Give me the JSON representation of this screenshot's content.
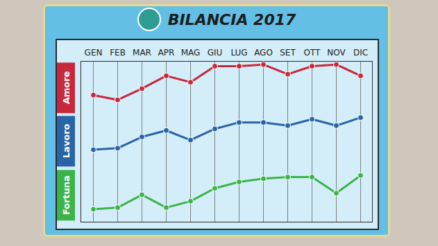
{
  "chart_data": {
    "type": "line",
    "title": "BILANCIA 2017",
    "categories": [
      "GEN",
      "FEB",
      "MAR",
      "APR",
      "MAG",
      "GIU",
      "LUG",
      "AGO",
      "SET",
      "OTT",
      "NOV",
      "DIC"
    ],
    "series": [
      {
        "name": "Amore",
        "color": "#c8283c",
        "values": [
          79,
          76,
          83,
          91,
          87,
          97,
          97,
          98,
          92,
          97,
          98,
          91
        ]
      },
      {
        "name": "Lavoro",
        "color": "#2a64a8",
        "values": [
          45,
          46,
          53,
          57,
          51,
          58,
          62,
          62,
          60,
          64,
          60,
          65
        ]
      },
      {
        "name": "Fortuna",
        "color": "#3cb44a",
        "values": [
          8,
          9,
          17,
          9,
          13,
          21,
          25,
          27,
          28,
          28,
          18,
          29
        ]
      }
    ],
    "ylim": [
      0,
      100
    ],
    "yticks": [],
    "grid": true,
    "tick_labels": "x",
    "marker": "circle",
    "line_style": "solid"
  }
}
